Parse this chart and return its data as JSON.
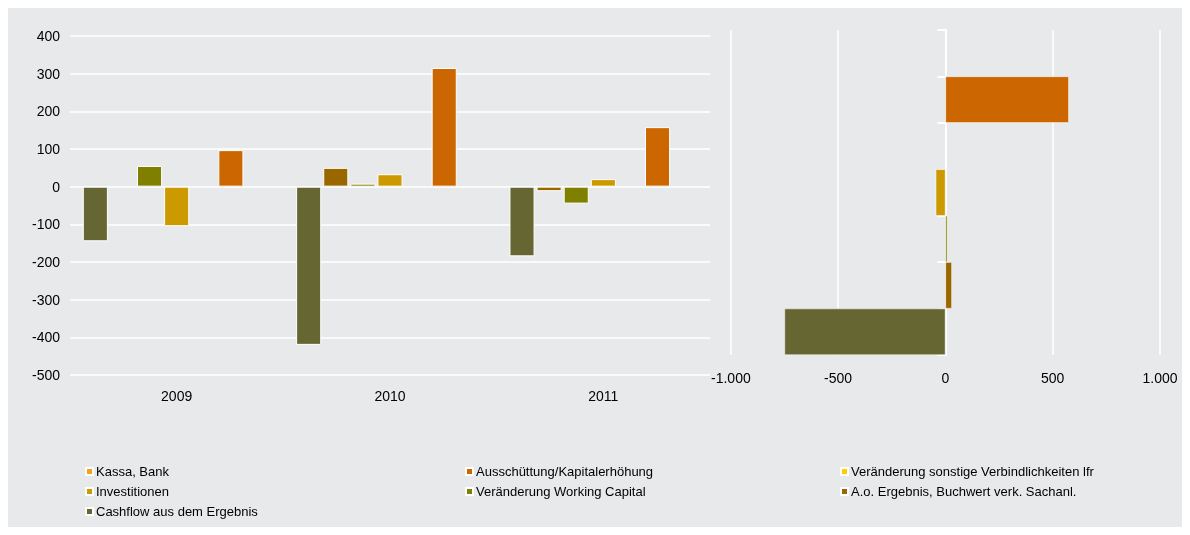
{
  "chart_data": [
    {
      "type": "bar",
      "categories": [
        "2009",
        "2010",
        "2011"
      ],
      "series": [
        {
          "name": "Cashflow aus dem Ergebnis",
          "color": "#666633",
          "values": [
            -145,
            -420,
            -185
          ]
        },
        {
          "name": "A.o. Ergebnis, Buchwert verk. Sachanl.",
          "color": "#996600",
          "values": [
            null,
            50,
            -12
          ]
        },
        {
          "name": "Veränderung Working Capital",
          "color": "#808000",
          "values": [
            55,
            8,
            -45
          ]
        },
        {
          "name": "Investitionen",
          "color": "#cc9900",
          "values": [
            -105,
            33,
            20
          ]
        },
        {
          "name": "Veränderung sonstige Verbindlichkeiten lfr",
          "color": "#ffcc00",
          "values": [
            null,
            null,
            null
          ]
        },
        {
          "name": "Ausschüttung/Kapitalerhöhung",
          "color": "#cc6600",
          "values": [
            97,
            315,
            158
          ]
        },
        {
          "name": "Kassa, Bank",
          "color": "#f5a21b",
          "values": [
            null,
            null,
            null
          ]
        }
      ],
      "ylim": [
        -500,
        400
      ],
      "yticks": [
        -500,
        -400,
        -300,
        -200,
        -100,
        0,
        100,
        200,
        300,
        400
      ],
      "grid": "y",
      "legend": "bottom"
    },
    {
      "type": "bar",
      "orientation": "horizontal",
      "categories": [
        null,
        null,
        null,
        null,
        null,
        null,
        null
      ],
      "values": [
        null,
        575,
        null,
        -45,
        9,
        30,
        -750
      ],
      "colors": [
        "#f5a21b",
        "#cc6600",
        "#ffcc00",
        "#cc9900",
        "#808000",
        "#996600",
        "#666633"
      ],
      "xlim": [
        -1000,
        1000
      ],
      "xticks": [
        {
          "value": -1000,
          "label": "-1.000"
        },
        -500,
        0,
        500,
        {
          "value": 1000,
          "label": "1.000"
        }
      ],
      "grid": "x",
      "tick_labels": "x"
    }
  ]
}
